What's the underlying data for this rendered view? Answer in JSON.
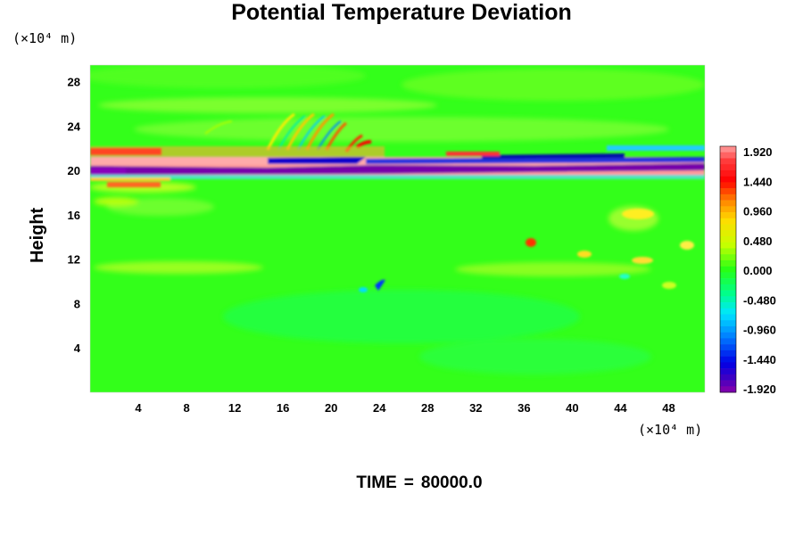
{
  "chart_data": {
    "type": "heatmap",
    "title": "Potential Temperature Deviation",
    "ylabel": "Height",
    "xlabel": "",
    "y_unit_label": "(×10⁴ m)",
    "x_unit_label": "(×10⁴ m)",
    "x_ticks": [
      4,
      8,
      12,
      16,
      20,
      24,
      28,
      32,
      36,
      40,
      44,
      48
    ],
    "y_ticks": [
      4,
      8,
      12,
      16,
      20,
      24,
      28
    ],
    "xlim": [
      0,
      51
    ],
    "ylim": [
      0,
      29.5
    ],
    "colorbar": {
      "labels": [
        "1.920",
        "1.440",
        "0.960",
        "0.480",
        "0.000",
        "-0.480",
        "-0.960",
        "-1.440",
        "-1.920"
      ],
      "min": -1.92,
      "max": 1.92
    },
    "time_label": "TIME",
    "time_value": "80000.0",
    "colors": {
      "background_green": "#33ff1a",
      "positive_max": "#ff9999",
      "negative_max": "#8800aa"
    }
  }
}
